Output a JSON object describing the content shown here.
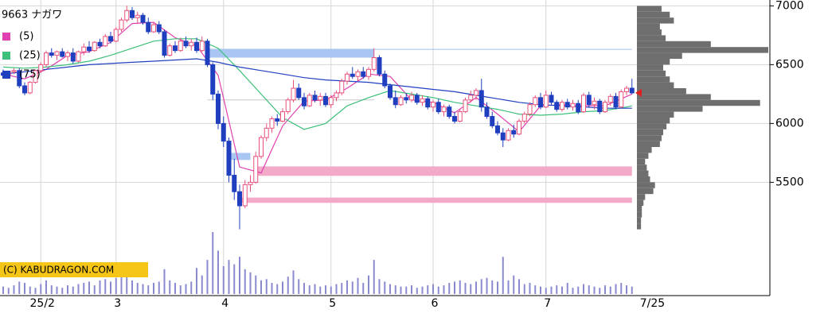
{
  "chart_data": {
    "type": "candlestick",
    "title": "9663 ナガワ",
    "copyright": "(C) KABUDRAGON.COM",
    "categories": [
      null,
      null,
      null,
      null,
      null,
      null,
      null,
      "25/2",
      null,
      null,
      null,
      null,
      null,
      null,
      null,
      null,
      null,
      null,
      null,
      null,
      null,
      "3",
      null,
      null,
      null,
      null,
      null,
      null,
      null,
      null,
      null,
      null,
      null,
      null,
      null,
      null,
      null,
      null,
      null,
      null,
      null,
      "4",
      null,
      null,
      null,
      null,
      null,
      null,
      null,
      null,
      null,
      null,
      null,
      null,
      null,
      null,
      null,
      null,
      null,
      null,
      null,
      "5",
      null,
      null,
      null,
      null,
      null,
      null,
      null,
      null,
      null,
      null,
      null,
      null,
      null,
      null,
      null,
      null,
      null,
      null,
      "6",
      null,
      null,
      null,
      null,
      null,
      null,
      null,
      null,
      null,
      null,
      null,
      null,
      null,
      null,
      null,
      null,
      null,
      null,
      null,
      null,
      "7",
      null,
      null,
      null,
      null,
      null,
      null,
      null,
      null,
      null,
      null,
      null,
      null,
      null,
      null,
      null,
      "7/25"
    ],
    "ohlc": [
      [
        6430,
        6460,
        6400,
        6410
      ],
      [
        6410,
        6450,
        6390,
        6440
      ],
      [
        6440,
        6470,
        6420,
        6450
      ],
      [
        6450,
        6470,
        6300,
        6320
      ],
      [
        6320,
        6350,
        6240,
        6260
      ],
      [
        6260,
        6360,
        6250,
        6350
      ],
      [
        6350,
        6460,
        6340,
        6450
      ],
      [
        6450,
        6520,
        6430,
        6500
      ],
      [
        6500,
        6620,
        6480,
        6600
      ],
      [
        6600,
        6640,
        6560,
        6580
      ],
      [
        6580,
        6620,
        6540,
        6610
      ],
      [
        6610,
        6640,
        6560,
        6570
      ],
      [
        6570,
        6620,
        6530,
        6600
      ],
      [
        6600,
        6640,
        6510,
        6530
      ],
      [
        6530,
        6620,
        6520,
        6610
      ],
      [
        6610,
        6680,
        6580,
        6650
      ],
      [
        6650,
        6700,
        6600,
        6620
      ],
      [
        6620,
        6700,
        6610,
        6690
      ],
      [
        6690,
        6720,
        6640,
        6660
      ],
      [
        6660,
        6760,
        6650,
        6740
      ],
      [
        6740,
        6780,
        6680,
        6700
      ],
      [
        6700,
        6820,
        6690,
        6800
      ],
      [
        6800,
        6900,
        6780,
        6880
      ],
      [
        6880,
        7000,
        6860,
        6960
      ],
      [
        6960,
        6990,
        6880,
        6900
      ],
      [
        6900,
        6950,
        6850,
        6920
      ],
      [
        6920,
        6940,
        6840,
        6860
      ],
      [
        6860,
        6900,
        6760,
        6780
      ],
      [
        6780,
        6860,
        6770,
        6840
      ],
      [
        6840,
        6870,
        6760,
        6780
      ],
      [
        6780,
        6800,
        6560,
        6580
      ],
      [
        6580,
        6680,
        6570,
        6660
      ],
      [
        6660,
        6700,
        6600,
        6620
      ],
      [
        6620,
        6730,
        6610,
        6700
      ],
      [
        6700,
        6740,
        6640,
        6660
      ],
      [
        6660,
        6720,
        6620,
        6690
      ],
      [
        6690,
        6730,
        6600,
        6620
      ],
      [
        6620,
        6740,
        6610,
        6700
      ],
      [
        6700,
        6720,
        6480,
        6500
      ],
      [
        6500,
        6520,
        6200,
        6250
      ],
      [
        6250,
        6280,
        5950,
        6000
      ],
      [
        6000,
        6060,
        5800,
        5850
      ],
      [
        5850,
        5880,
        5500,
        5560
      ],
      [
        5560,
        5700,
        5350,
        5420
      ],
      [
        5420,
        5480,
        5100,
        5300
      ],
      [
        5300,
        5520,
        5280,
        5480
      ],
      [
        5480,
        5560,
        5420,
        5500
      ],
      [
        5500,
        5760,
        5490,
        5720
      ],
      [
        5720,
        5900,
        5700,
        5880
      ],
      [
        5880,
        6000,
        5850,
        5960
      ],
      [
        5960,
        6060,
        5920,
        6040
      ],
      [
        6040,
        6080,
        5980,
        6020
      ],
      [
        6020,
        6130,
        6010,
        6100
      ],
      [
        6100,
        6220,
        6080,
        6200
      ],
      [
        6200,
        6370,
        6180,
        6300
      ],
      [
        6300,
        6340,
        6200,
        6220
      ],
      [
        6220,
        6260,
        6120,
        6150
      ],
      [
        6150,
        6260,
        6140,
        6240
      ],
      [
        6240,
        6280,
        6180,
        6200
      ],
      [
        6200,
        6260,
        6150,
        6230
      ],
      [
        6230,
        6260,
        6140,
        6160
      ],
      [
        6160,
        6240,
        6130,
        6220
      ],
      [
        6220,
        6280,
        6190,
        6260
      ],
      [
        6260,
        6380,
        6240,
        6360
      ],
      [
        6360,
        6440,
        6330,
        6420
      ],
      [
        6420,
        6480,
        6380,
        6400
      ],
      [
        6400,
        6460,
        6360,
        6440
      ],
      [
        6440,
        6480,
        6380,
        6400
      ],
      [
        6400,
        6480,
        6370,
        6460
      ],
      [
        6460,
        6640,
        6440,
        6560
      ],
      [
        6560,
        6580,
        6400,
        6420
      ],
      [
        6420,
        6450,
        6300,
        6320
      ],
      [
        6320,
        6340,
        6200,
        6220
      ],
      [
        6220,
        6280,
        6130,
        6160
      ],
      [
        6160,
        6240,
        6150,
        6220
      ],
      [
        6220,
        6260,
        6170,
        6200
      ],
      [
        6200,
        6270,
        6180,
        6240
      ],
      [
        6240,
        6260,
        6160,
        6180
      ],
      [
        6180,
        6240,
        6150,
        6210
      ],
      [
        6210,
        6230,
        6120,
        6140
      ],
      [
        6140,
        6200,
        6100,
        6180
      ],
      [
        6180,
        6210,
        6080,
        6100
      ],
      [
        6100,
        6160,
        6060,
        6140
      ],
      [
        6140,
        6160,
        6040,
        6060
      ],
      [
        6060,
        6100,
        6000,
        6020
      ],
      [
        6020,
        6120,
        6010,
        6100
      ],
      [
        6100,
        6220,
        6090,
        6200
      ],
      [
        6200,
        6280,
        6180,
        6240
      ],
      [
        6240,
        6300,
        6200,
        6280
      ],
      [
        6280,
        6380,
        6100,
        6140
      ],
      [
        6140,
        6180,
        6040,
        6060
      ],
      [
        6060,
        6100,
        5960,
        5980
      ],
      [
        5980,
        6020,
        5900,
        5920
      ],
      [
        5920,
        5960,
        5800,
        5860
      ],
      [
        5860,
        5960,
        5850,
        5940
      ],
      [
        5940,
        5990,
        5880,
        5910
      ],
      [
        5910,
        6040,
        5900,
        6020
      ],
      [
        6020,
        6100,
        6000,
        6080
      ],
      [
        6080,
        6180,
        6060,
        6160
      ],
      [
        6160,
        6240,
        6140,
        6220
      ],
      [
        6220,
        6260,
        6120,
        6140
      ],
      [
        6140,
        6280,
        6130,
        6240
      ],
      [
        6240,
        6270,
        6160,
        6180
      ],
      [
        6180,
        6200,
        6100,
        6120
      ],
      [
        6120,
        6200,
        6100,
        6180
      ],
      [
        6180,
        6210,
        6120,
        6140
      ],
      [
        6140,
        6200,
        6110,
        6170
      ],
      [
        6170,
        6200,
        6080,
        6100
      ],
      [
        6100,
        6260,
        6090,
        6240
      ],
      [
        6240,
        6270,
        6140,
        6160
      ],
      [
        6160,
        6220,
        6120,
        6190
      ],
      [
        6190,
        6210,
        6080,
        6100
      ],
      [
        6100,
        6200,
        6090,
        6180
      ],
      [
        6180,
        6250,
        6150,
        6230
      ],
      [
        6230,
        6260,
        6120,
        6140
      ],
      [
        6140,
        6290,
        6130,
        6270
      ],
      [
        6270,
        6320,
        6240,
        6300
      ],
      [
        6300,
        6380,
        6250,
        6260
      ]
    ],
    "up_color": "#e8507a",
    "down_color": "#1f3fbf",
    "ma": [
      {
        "name": "(5)",
        "color": "#e040b0",
        "x": [
          0,
          4,
          8,
          12,
          16,
          20,
          24,
          28,
          32,
          36,
          40,
          44,
          48,
          52,
          56,
          60,
          64,
          68,
          72,
          76,
          80,
          84,
          88,
          92,
          96,
          100,
          104,
          108,
          112,
          116,
          117
        ],
        "values": [
          6420,
          6380,
          6460,
          6580,
          6610,
          6690,
          6850,
          6860,
          6730,
          6660,
          6410,
          5630,
          5580,
          5980,
          6190,
          6200,
          6300,
          6420,
          6400,
          6200,
          6180,
          6090,
          6220,
          6080,
          5930,
          6150,
          6160,
          6150,
          6150,
          6230,
          6250
        ]
      },
      {
        "name": "(25)",
        "color": "#3cc07a",
        "x": [
          0,
          4,
          8,
          12,
          16,
          20,
          24,
          28,
          32,
          36,
          40,
          44,
          48,
          52,
          56,
          60,
          64,
          68,
          72,
          76,
          80,
          84,
          88,
          92,
          96,
          100,
          104,
          108,
          112,
          116,
          117
        ],
        "values": [
          6480,
          6470,
          6480,
          6500,
          6530,
          6580,
          6640,
          6700,
          6720,
          6720,
          6640,
          6450,
          6250,
          6050,
          5950,
          6000,
          6150,
          6220,
          6280,
          6250,
          6220,
          6180,
          6150,
          6120,
          6080,
          6070,
          6080,
          6100,
          6110,
          6140,
          6150
        ]
      },
      {
        "name": "(75)",
        "color": "#2040c0",
        "x": [
          0,
          4,
          8,
          12,
          16,
          20,
          24,
          28,
          32,
          36,
          40,
          44,
          48,
          52,
          56,
          60,
          64,
          68,
          72,
          76,
          80,
          84,
          88,
          92,
          96,
          100,
          104,
          108,
          112,
          116,
          117
        ],
        "values": [
          6420,
          6440,
          6460,
          6480,
          6500,
          6510,
          6520,
          6530,
          6540,
          6550,
          6520,
          6480,
          6450,
          6420,
          6390,
          6370,
          6360,
          6350,
          6330,
          6310,
          6290,
          6270,
          6240,
          6210,
          6180,
          6160,
          6150,
          6140,
          6130,
          6130,
          6130
        ]
      }
    ],
    "volume": [
      12,
      10,
      14,
      20,
      18,
      12,
      10,
      16,
      22,
      14,
      12,
      10,
      14,
      12,
      16,
      18,
      20,
      14,
      22,
      24,
      20,
      26,
      30,
      28,
      22,
      18,
      16,
      14,
      18,
      20,
      40,
      22,
      18,
      14,
      16,
      20,
      42,
      30,
      55,
      100,
      70,
      45,
      55,
      48,
      60,
      40,
      35,
      30,
      22,
      24,
      18,
      16,
      20,
      28,
      38,
      24,
      18,
      14,
      16,
      12,
      14,
      12,
      16,
      18,
      22,
      20,
      26,
      18,
      30,
      55,
      24,
      20,
      16,
      14,
      12,
      12,
      14,
      10,
      12,
      14,
      16,
      12,
      14,
      18,
      20,
      22,
      18,
      16,
      20,
      24,
      26,
      22,
      20,
      60,
      22,
      30,
      24,
      16,
      18,
      14,
      12,
      10,
      12,
      14,
      12,
      18,
      10,
      12,
      16,
      14,
      12,
      10,
      14,
      12,
      16,
      18,
      14,
      12
    ],
    "volume_lim": [
      0,
      100
    ],
    "volume_color": "#8a8ad0",
    "profile": {
      "bins": [
        5100,
        5150,
        5200,
        5250,
        5300,
        5350,
        5400,
        5450,
        5500,
        5550,
        5600,
        5650,
        5700,
        5750,
        5800,
        5850,
        5900,
        5950,
        6000,
        6050,
        6100,
        6150,
        6200,
        6250,
        6300,
        6350,
        6400,
        6450,
        6500,
        6550,
        6600,
        6650,
        6700,
        6750,
        6800,
        6850,
        6900,
        6950,
        7000
      ],
      "counts": [
        5,
        5,
        6,
        6,
        8,
        10,
        20,
        22,
        16,
        14,
        12,
        10,
        14,
        18,
        28,
        30,
        32,
        36,
        40,
        45,
        80,
        150,
        90,
        60,
        45,
        40,
        35,
        32,
        40,
        55,
        160,
        90,
        35,
        30,
        28,
        45,
        40,
        30
      ],
      "lim": [
        0,
        160
      ],
      "color": "#6e6e6e"
    },
    "zones": [
      {
        "low": 6560,
        "high": 6635,
        "from": 38,
        "to": 69,
        "color": "#a9c6f2"
      },
      {
        "low": 5690,
        "high": 5750,
        "from": 42,
        "to": 46,
        "color": "#a9c6f2"
      },
      {
        "low": 5555,
        "high": 5635,
        "from": 47,
        "to": 117,
        "color": "#f3a9c8"
      },
      {
        "low": 5325,
        "high": 5370,
        "from": 44,
        "to": 117,
        "color": "#f3a9c8"
      }
    ],
    "levels": [
      {
        "value": 6630,
        "from": 38,
        "to": 117,
        "color": "#9fc0ea"
      },
      {
        "value": 6200,
        "from": 38,
        "to": 69,
        "color": "#c8c8c8"
      }
    ],
    "marker_color": "#e02020",
    "ylim": [
      4550,
      7050
    ],
    "yticks": [
      7000,
      6500,
      6000,
      5500
    ],
    "grid": true
  }
}
